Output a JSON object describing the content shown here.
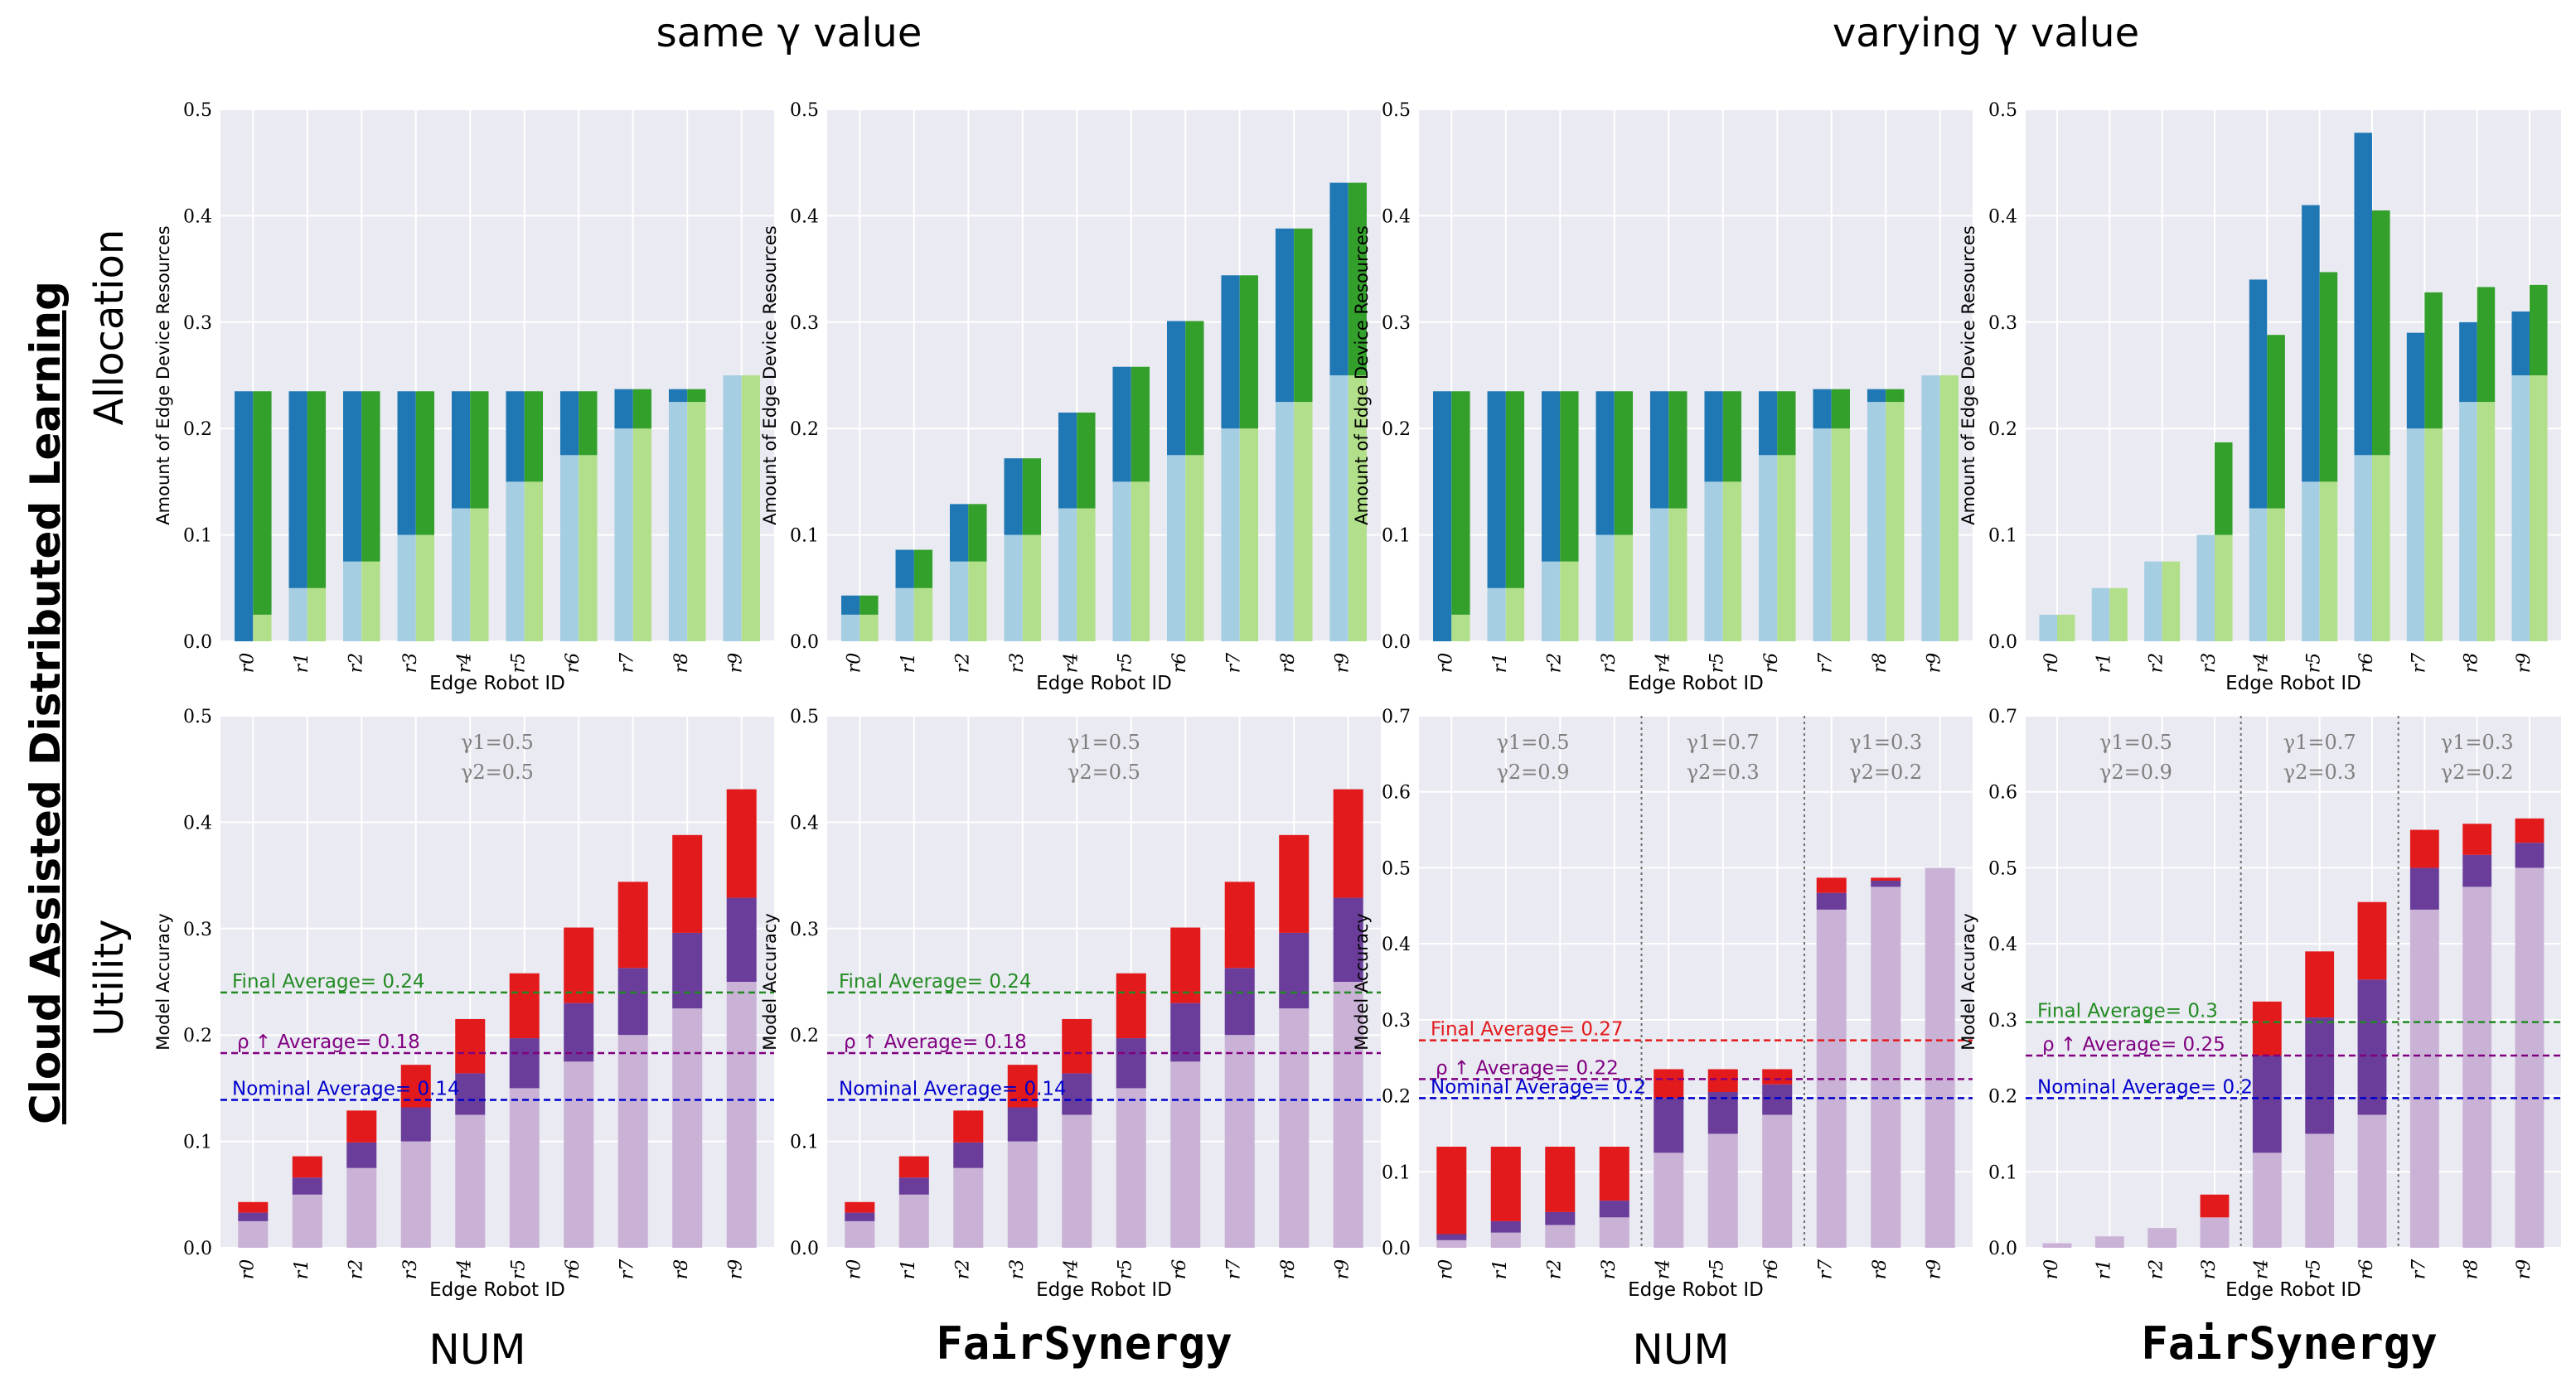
{
  "figure": {
    "group_titles": [
      "same γ value",
      "varying γ value"
    ],
    "side_title": "Cloud Assisted Distributed Learning",
    "row_labels": [
      "Allocation",
      "Utility"
    ],
    "method_labels": [
      "NUM",
      "FairSynergy",
      "NUM",
      "FairSynergy"
    ]
  },
  "colors": {
    "alloc_light_a": "#a6cee3",
    "alloc_dark_a": "#1f78b4",
    "alloc_light_b": "#b2df8a",
    "alloc_dark_b": "#33a02c",
    "util_base": "#cab2d6",
    "util_mid": "#6a3d9a",
    "util_top": "#e31a1c",
    "line_final": "#228b22",
    "line_final_alt": "#e31a1c",
    "line_rho": "#800080",
    "line_nominal": "#0000cd",
    "panel_bg": "#eaeaf2",
    "gamma_text": "#808080"
  },
  "chart_data": [
    {
      "id": "alloc_num_same",
      "type": "bar",
      "stacked": true,
      "paired": true,
      "categories": [
        "r0",
        "r1",
        "r2",
        "r3",
        "r4",
        "r5",
        "r6",
        "r7",
        "r8",
        "r9"
      ],
      "xlabel": "Edge Robot ID",
      "ylabel": "Amount of Edge Device Resources",
      "ylim": [
        0,
        0.5
      ],
      "yticks": [
        0.0,
        0.1,
        0.2,
        0.3,
        0.4,
        0.5
      ],
      "grid": true,
      "series": [
        {
          "base": [
            0.0,
            0.05,
            0.075,
            0.1,
            0.125,
            0.15,
            0.175,
            0.2,
            0.225,
            0.25
          ],
          "top": [
            0.235,
            0.235,
            0.235,
            0.235,
            0.235,
            0.235,
            0.235,
            0.237,
            0.237,
            0.25
          ]
        },
        {
          "base": [
            0.025,
            0.05,
            0.075,
            0.1,
            0.125,
            0.15,
            0.175,
            0.2,
            0.225,
            0.25
          ],
          "top": [
            0.235,
            0.235,
            0.235,
            0.235,
            0.235,
            0.235,
            0.235,
            0.237,
            0.237,
            0.25
          ]
        }
      ]
    },
    {
      "id": "alloc_fair_same",
      "type": "bar",
      "stacked": true,
      "paired": true,
      "categories": [
        "r0",
        "r1",
        "r2",
        "r3",
        "r4",
        "r5",
        "r6",
        "r7",
        "r8",
        "r9"
      ],
      "xlabel": "Edge Robot ID",
      "ylabel": "Amount of Edge Device Resources",
      "ylim": [
        0,
        0.5
      ],
      "yticks": [
        0.0,
        0.1,
        0.2,
        0.3,
        0.4,
        0.5
      ],
      "grid": true,
      "series": [
        {
          "base": [
            0.025,
            0.05,
            0.075,
            0.1,
            0.125,
            0.15,
            0.175,
            0.2,
            0.225,
            0.25
          ],
          "top": [
            0.043,
            0.086,
            0.129,
            0.172,
            0.215,
            0.258,
            0.301,
            0.344,
            0.388,
            0.431
          ]
        },
        {
          "base": [
            0.025,
            0.05,
            0.075,
            0.1,
            0.125,
            0.15,
            0.175,
            0.2,
            0.225,
            0.25
          ],
          "top": [
            0.043,
            0.086,
            0.129,
            0.172,
            0.215,
            0.258,
            0.301,
            0.344,
            0.388,
            0.431
          ]
        }
      ]
    },
    {
      "id": "alloc_num_vary",
      "type": "bar",
      "stacked": true,
      "paired": true,
      "categories": [
        "r0",
        "r1",
        "r2",
        "r3",
        "r4",
        "r5",
        "r6",
        "r7",
        "r8",
        "r9"
      ],
      "xlabel": "Edge Robot ID",
      "ylabel": "Amount of Edge Device Resources",
      "ylim": [
        0,
        0.5
      ],
      "yticks": [
        0.0,
        0.1,
        0.2,
        0.3,
        0.4,
        0.5
      ],
      "grid": true,
      "series": [
        {
          "base": [
            0.0,
            0.05,
            0.075,
            0.1,
            0.125,
            0.15,
            0.175,
            0.2,
            0.225,
            0.25
          ],
          "top": [
            0.235,
            0.235,
            0.235,
            0.235,
            0.235,
            0.235,
            0.235,
            0.237,
            0.237,
            0.25
          ]
        },
        {
          "base": [
            0.025,
            0.05,
            0.075,
            0.1,
            0.125,
            0.15,
            0.175,
            0.2,
            0.225,
            0.25
          ],
          "top": [
            0.235,
            0.235,
            0.235,
            0.235,
            0.235,
            0.235,
            0.235,
            0.237,
            0.237,
            0.25
          ]
        }
      ]
    },
    {
      "id": "alloc_fair_vary",
      "type": "bar",
      "stacked": true,
      "paired": true,
      "categories": [
        "r0",
        "r1",
        "r2",
        "r3",
        "r4",
        "r5",
        "r6",
        "r7",
        "r8",
        "r9"
      ],
      "xlabel": "Edge Robot ID",
      "ylabel": "Amount of Edge Device Resources",
      "ylim": [
        0,
        0.5
      ],
      "yticks": [
        0.0,
        0.1,
        0.2,
        0.3,
        0.4,
        0.5
      ],
      "grid": true,
      "series": [
        {
          "base": [
            0.025,
            0.05,
            0.075,
            0.1,
            0.125,
            0.15,
            0.175,
            0.2,
            0.225,
            0.25
          ],
          "top": [
            0.025,
            0.05,
            0.075,
            0.1,
            0.34,
            0.41,
            0.478,
            0.29,
            0.3,
            0.31
          ]
        },
        {
          "base": [
            0.025,
            0.05,
            0.075,
            0.1,
            0.125,
            0.15,
            0.175,
            0.2,
            0.225,
            0.25
          ],
          "top": [
            0.025,
            0.05,
            0.075,
            0.187,
            0.288,
            0.347,
            0.405,
            0.328,
            0.333,
            0.335
          ]
        }
      ]
    },
    {
      "id": "util_num_same",
      "type": "bar",
      "stacked": true,
      "categories": [
        "r0",
        "r1",
        "r2",
        "r3",
        "r4",
        "r5",
        "r6",
        "r7",
        "r8",
        "r9"
      ],
      "xlabel": "Edge Robot ID",
      "ylabel": "Model Accuracy",
      "ylim": [
        0,
        0.5
      ],
      "yticks": [
        0.0,
        0.1,
        0.2,
        0.3,
        0.4,
        0.5
      ],
      "grid": true,
      "base": [
        0.025,
        0.05,
        0.075,
        0.1,
        0.125,
        0.15,
        0.175,
        0.2,
        0.225,
        0.25
      ],
      "mid": [
        0.033,
        0.066,
        0.099,
        0.132,
        0.164,
        0.197,
        0.23,
        0.263,
        0.296,
        0.329
      ],
      "top": [
        0.043,
        0.086,
        0.129,
        0.172,
        0.215,
        0.258,
        0.301,
        0.344,
        0.388,
        0.431
      ],
      "gamma_labels": [
        {
          "line1": "γ1=0.5",
          "line2": "γ2=0.5",
          "from": 0,
          "to": 9
        }
      ],
      "separators": [],
      "hlines": [
        {
          "label": "Final Average= 0.24",
          "y": 0.24,
          "color": "final"
        },
        {
          "label": "ρ ↑ Average= 0.18",
          "y": 0.183,
          "color": "rho"
        },
        {
          "label": "Nominal Average= 0.14",
          "y": 0.139,
          "color": "nominal"
        }
      ]
    },
    {
      "id": "util_fair_same",
      "type": "bar",
      "stacked": true,
      "categories": [
        "r0",
        "r1",
        "r2",
        "r3",
        "r4",
        "r5",
        "r6",
        "r7",
        "r8",
        "r9"
      ],
      "xlabel": "Edge Robot ID",
      "ylabel": "Model Accuracy",
      "ylim": [
        0,
        0.5
      ],
      "yticks": [
        0.0,
        0.1,
        0.2,
        0.3,
        0.4,
        0.5
      ],
      "grid": true,
      "base": [
        0.025,
        0.05,
        0.075,
        0.1,
        0.125,
        0.15,
        0.175,
        0.2,
        0.225,
        0.25
      ],
      "mid": [
        0.033,
        0.066,
        0.099,
        0.132,
        0.164,
        0.197,
        0.23,
        0.263,
        0.296,
        0.329
      ],
      "top": [
        0.043,
        0.086,
        0.129,
        0.172,
        0.215,
        0.258,
        0.301,
        0.344,
        0.388,
        0.431
      ],
      "gamma_labels": [
        {
          "line1": "γ1=0.5",
          "line2": "γ2=0.5",
          "from": 0,
          "to": 9
        }
      ],
      "separators": [],
      "hlines": [
        {
          "label": "Final Average= 0.24",
          "y": 0.24,
          "color": "final"
        },
        {
          "label": "ρ ↑ Average= 0.18",
          "y": 0.183,
          "color": "rho"
        },
        {
          "label": "Nominal Average= 0.14",
          "y": 0.139,
          "color": "nominal"
        }
      ]
    },
    {
      "id": "util_num_vary",
      "type": "bar",
      "stacked": true,
      "categories": [
        "r0",
        "r1",
        "r2",
        "r3",
        "r4",
        "r5",
        "r6",
        "r7",
        "r8",
        "r9"
      ],
      "xlabel": "Edge Robot ID",
      "ylabel": "Model Accuracy",
      "ylim": [
        0,
        0.7
      ],
      "yticks": [
        0.0,
        0.1,
        0.2,
        0.3,
        0.4,
        0.5,
        0.6,
        0.7
      ],
      "grid": true,
      "base": [
        0.01,
        0.02,
        0.03,
        0.04,
        0.125,
        0.15,
        0.175,
        0.445,
        0.475,
        0.5
      ],
      "mid": [
        0.018,
        0.035,
        0.047,
        0.062,
        0.197,
        0.205,
        0.215,
        0.467,
        0.483,
        0.5
      ],
      "top": [
        0.133,
        0.133,
        0.133,
        0.133,
        0.235,
        0.235,
        0.235,
        0.487,
        0.487,
        0.5
      ],
      "gamma_labels": [
        {
          "line1": "γ1=0.5",
          "line2": "γ2=0.9",
          "from": 0,
          "to": 3
        },
        {
          "line1": "γ1=0.7",
          "line2": "γ2=0.3",
          "from": 4,
          "to": 6
        },
        {
          "line1": "γ1=0.3",
          "line2": "γ2=0.2",
          "from": 7,
          "to": 9
        }
      ],
      "separators": [
        3.5,
        6.5
      ],
      "hlines": [
        {
          "label": "Final Average= 0.27",
          "y": 0.273,
          "color": "final_alt"
        },
        {
          "label": "ρ ↑ Average= 0.22",
          "y": 0.222,
          "color": "rho"
        },
        {
          "label": "Nominal Average= 0.2",
          "y": 0.197,
          "color": "nominal"
        }
      ]
    },
    {
      "id": "util_fair_vary",
      "type": "bar",
      "stacked": true,
      "categories": [
        "r0",
        "r1",
        "r2",
        "r3",
        "r4",
        "r5",
        "r6",
        "r7",
        "r8",
        "r9"
      ],
      "xlabel": "Edge Robot ID",
      "ylabel": "Model Accuracy",
      "ylim": [
        0,
        0.7
      ],
      "yticks": [
        0.0,
        0.1,
        0.2,
        0.3,
        0.4,
        0.5,
        0.6,
        0.7
      ],
      "grid": true,
      "base": [
        0.006,
        0.015,
        0.026,
        0.04,
        0.125,
        0.15,
        0.175,
        0.445,
        0.475,
        0.5
      ],
      "mid": [
        0.006,
        0.015,
        0.026,
        0.04,
        0.253,
        0.303,
        0.353,
        0.5,
        0.517,
        0.533
      ],
      "top": [
        0.006,
        0.015,
        0.026,
        0.07,
        0.324,
        0.39,
        0.455,
        0.55,
        0.558,
        0.565
      ],
      "gamma_labels": [
        {
          "line1": "γ1=0.5",
          "line2": "γ2=0.9",
          "from": 0,
          "to": 3
        },
        {
          "line1": "γ1=0.7",
          "line2": "γ2=0.3",
          "from": 4,
          "to": 6
        },
        {
          "line1": "γ1=0.3",
          "line2": "γ2=0.2",
          "from": 7,
          "to": 9
        }
      ],
      "separators": [
        3.5,
        6.5
      ],
      "hlines": [
        {
          "label": "Final Average= 0.3",
          "y": 0.297,
          "color": "final"
        },
        {
          "label": "ρ ↑ Average= 0.25",
          "y": 0.253,
          "color": "rho"
        },
        {
          "label": "Nominal Average= 0.2",
          "y": 0.197,
          "color": "nominal"
        }
      ]
    }
  ]
}
